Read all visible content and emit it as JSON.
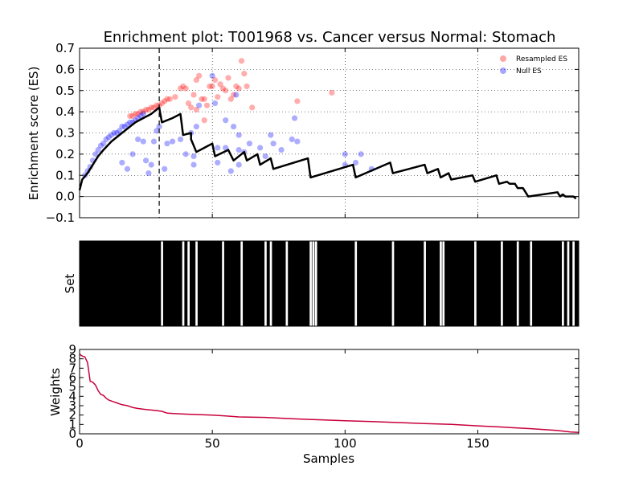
{
  "chart_data": {
    "type": "line",
    "title": "Enrichment plot: T001968 vs. Cancer versus Normal: Stomach",
    "xlabel": "Samples",
    "xlim": [
      0,
      188
    ],
    "x_ticks": [
      "0",
      "50",
      "100",
      "150"
    ],
    "panels": {
      "es": {
        "ylabel": "Enrichment score (ES)",
        "ylim": [
          -0.1,
          0.7
        ],
        "y_ticks": [
          "−0.1",
          "0.0",
          "0.1",
          "0.2",
          "0.3",
          "0.4",
          "0.5",
          "0.6",
          "0.7"
        ],
        "grid": true,
        "max_dev_x": 30,
        "legend_position": "top-right",
        "es_line_color": "#000000",
        "series": [
          {
            "name": "Resampled ES",
            "type": "scatter",
            "color": "#ff0000",
            "points": [
              [
                19,
                0.38
              ],
              [
                20,
                0.38
              ],
              [
                21,
                0.39
              ],
              [
                22,
                0.39
              ],
              [
                23,
                0.4
              ],
              [
                24,
                0.4
              ],
              [
                25,
                0.41
              ],
              [
                26,
                0.41
              ],
              [
                27,
                0.42
              ],
              [
                28,
                0.42
              ],
              [
                29,
                0.43
              ],
              [
                30,
                0.43
              ],
              [
                31,
                0.44
              ],
              [
                32,
                0.45
              ],
              [
                33,
                0.46
              ],
              [
                34,
                0.46
              ],
              [
                36,
                0.47
              ],
              [
                38,
                0.51
              ],
              [
                39,
                0.52
              ],
              [
                40,
                0.51
              ],
              [
                41,
                0.44
              ],
              [
                42,
                0.42
              ],
              [
                43,
                0.48
              ],
              [
                44,
                0.55
              ],
              [
                45,
                0.57
              ],
              [
                46,
                0.46
              ],
              [
                47,
                0.46
              ],
              [
                48,
                0.43
              ],
              [
                49,
                0.52
              ],
              [
                50,
                0.52
              ],
              [
                51,
                0.55
              ],
              [
                52,
                0.47
              ],
              [
                53,
                0.53
              ],
              [
                54,
                0.51
              ],
              [
                55,
                0.5
              ],
              [
                56,
                0.56
              ],
              [
                57,
                0.46
              ],
              [
                58,
                0.48
              ],
              [
                59,
                0.52
              ],
              [
                60,
                0.51
              ],
              [
                61,
                0.64
              ],
              [
                62,
                0.58
              ],
              [
                63,
                0.52
              ],
              [
                65,
                0.42
              ],
              [
                82,
                0.45
              ],
              [
                95,
                0.49
              ],
              [
                47,
                0.36
              ],
              [
                44,
                0.41
              ]
            ]
          },
          {
            "name": "Null ES",
            "type": "scatter",
            "color": "#0000ff",
            "points": [
              [
                2,
                0.1
              ],
              [
                3,
                0.12
              ],
              [
                4,
                0.14
              ],
              [
                5,
                0.17
              ],
              [
                6,
                0.2
              ],
              [
                7,
                0.22
              ],
              [
                8,
                0.24
              ],
              [
                9,
                0.25
              ],
              [
                10,
                0.27
              ],
              [
                11,
                0.28
              ],
              [
                12,
                0.29
              ],
              [
                13,
                0.3
              ],
              [
                14,
                0.3
              ],
              [
                15,
                0.31
              ],
              [
                16,
                0.33
              ],
              [
                17,
                0.33
              ],
              [
                18,
                0.34
              ],
              [
                19,
                0.35
              ],
              [
                20,
                0.35
              ],
              [
                21,
                0.36
              ],
              [
                22,
                0.37
              ],
              [
                23,
                0.38
              ],
              [
                24,
                0.39
              ],
              [
                16,
                0.16
              ],
              [
                18,
                0.13
              ],
              [
                20,
                0.2
              ],
              [
                22,
                0.27
              ],
              [
                24,
                0.26
              ],
              [
                25,
                0.17
              ],
              [
                26,
                0.11
              ],
              [
                27,
                0.15
              ],
              [
                28,
                0.26
              ],
              [
                29,
                0.31
              ],
              [
                30,
                0.33
              ],
              [
                32,
                0.13
              ],
              [
                33,
                0.25
              ],
              [
                35,
                0.26
              ],
              [
                38,
                0.27
              ],
              [
                40,
                0.2
              ],
              [
                42,
                0.3
              ],
              [
                43,
                0.15
              ],
              [
                43,
                0.19
              ],
              [
                44,
                0.33
              ],
              [
                45,
                0.43
              ],
              [
                50,
                0.57
              ],
              [
                51,
                0.44
              ],
              [
                52,
                0.23
              ],
              [
                55,
                0.23
              ],
              [
                57,
                0.12
              ],
              [
                58,
                0.33
              ],
              [
                59,
                0.48
              ],
              [
                60,
                0.15
              ],
              [
                60,
                0.22
              ],
              [
                62,
                0.21
              ],
              [
                64,
                0.25
              ],
              [
                68,
                0.23
              ],
              [
                70,
                0.19
              ],
              [
                72,
                0.29
              ],
              [
                73,
                0.25
              ],
              [
                76,
                0.22
              ],
              [
                80,
                0.27
              ],
              [
                81,
                0.37
              ],
              [
                82,
                0.26
              ],
              [
                100,
                0.2
              ],
              [
                100,
                0.15
              ],
              [
                104,
                0.16
              ],
              [
                106,
                0.2
              ],
              [
                110,
                0.13
              ],
              [
                60,
                0.29
              ],
              [
                52,
                0.16
              ],
              [
                55,
                0.36
              ]
            ]
          }
        ],
        "es_curve": [
          [
            0,
            0.03
          ],
          [
            1,
            0.08
          ],
          [
            3,
            0.11
          ],
          [
            5,
            0.15
          ],
          [
            7,
            0.19
          ],
          [
            9,
            0.22
          ],
          [
            12,
            0.26
          ],
          [
            15,
            0.29
          ],
          [
            18,
            0.32
          ],
          [
            21,
            0.35
          ],
          [
            24,
            0.37
          ],
          [
            27,
            0.39
          ],
          [
            30,
            0.42
          ],
          [
            31,
            0.35
          ],
          [
            35,
            0.37
          ],
          [
            38,
            0.39
          ],
          [
            39,
            0.29
          ],
          [
            42,
            0.3
          ],
          [
            42,
            0.27
          ],
          [
            44,
            0.21
          ],
          [
            50,
            0.25
          ],
          [
            51,
            0.19
          ],
          [
            56,
            0.22
          ],
          [
            58,
            0.17
          ],
          [
            62,
            0.21
          ],
          [
            63,
            0.17
          ],
          [
            67,
            0.2
          ],
          [
            68,
            0.15
          ],
          [
            72,
            0.18
          ],
          [
            73,
            0.13
          ],
          [
            86,
            0.18
          ],
          [
            87,
            0.09
          ],
          [
            103,
            0.15
          ],
          [
            104,
            0.09
          ],
          [
            117,
            0.16
          ],
          [
            118,
            0.11
          ],
          [
            130,
            0.15
          ],
          [
            131,
            0.11
          ],
          [
            135,
            0.13
          ],
          [
            136,
            0.09
          ],
          [
            139,
            0.11
          ],
          [
            140,
            0.08
          ],
          [
            148,
            0.1
          ],
          [
            149,
            0.07
          ],
          [
            157,
            0.1
          ],
          [
            158,
            0.06
          ],
          [
            161,
            0.07
          ],
          [
            162,
            0.06
          ],
          [
            164,
            0.06
          ],
          [
            165,
            0.04
          ],
          [
            167,
            0.04
          ],
          [
            169,
            0.0
          ],
          [
            180,
            0.02
          ],
          [
            181,
            0.0
          ],
          [
            182,
            0.01
          ],
          [
            183,
            0.0
          ],
          [
            184,
            0.0
          ],
          [
            185,
            0.0
          ],
          [
            186,
            0.0
          ],
          [
            187,
            -0.01
          ]
        ]
      },
      "set": {
        "ylabel": "Set",
        "background_color": "#000000",
        "gap_color": "#ffffff",
        "gap_samples": [
          31,
          39,
          41,
          44,
          54,
          61,
          70,
          72,
          78,
          87,
          88,
          89,
          104,
          118,
          130,
          136,
          137,
          149,
          159,
          165,
          170,
          182,
          184,
          186
        ]
      },
      "weights": {
        "ylabel": "Weights",
        "ylim": [
          0,
          9
        ],
        "y_ticks": [
          "0",
          "1",
          "2",
          "3",
          "4",
          "5",
          "6",
          "7",
          "8",
          "9"
        ],
        "line_color": "#c8003c",
        "curve": [
          [
            0,
            8.5
          ],
          [
            1,
            8.3
          ],
          [
            2,
            8.2
          ],
          [
            3,
            7.6
          ],
          [
            4,
            5.6
          ],
          [
            5,
            5.5
          ],
          [
            6,
            5.2
          ],
          [
            7,
            4.6
          ],
          [
            8,
            4.2
          ],
          [
            9,
            4.1
          ],
          [
            10,
            3.8
          ],
          [
            11,
            3.6
          ],
          [
            12,
            3.5
          ],
          [
            13,
            3.4
          ],
          [
            14,
            3.3
          ],
          [
            15,
            3.2
          ],
          [
            16,
            3.1
          ],
          [
            18,
            3.0
          ],
          [
            20,
            2.8
          ],
          [
            22,
            2.7
          ],
          [
            25,
            2.6
          ],
          [
            28,
            2.5
          ],
          [
            31,
            2.4
          ],
          [
            33,
            2.2
          ],
          [
            36,
            2.15
          ],
          [
            40,
            2.1
          ],
          [
            45,
            2.05
          ],
          [
            50,
            2.0
          ],
          [
            55,
            1.9
          ],
          [
            60,
            1.8
          ],
          [
            70,
            1.75
          ],
          [
            80,
            1.6
          ],
          [
            90,
            1.5
          ],
          [
            100,
            1.4
          ],
          [
            110,
            1.3
          ],
          [
            120,
            1.2
          ],
          [
            130,
            1.1
          ],
          [
            140,
            1.0
          ],
          [
            150,
            0.85
          ],
          [
            160,
            0.7
          ],
          [
            170,
            0.55
          ],
          [
            180,
            0.35
          ],
          [
            185,
            0.2
          ],
          [
            188,
            0.15
          ]
        ]
      }
    }
  }
}
